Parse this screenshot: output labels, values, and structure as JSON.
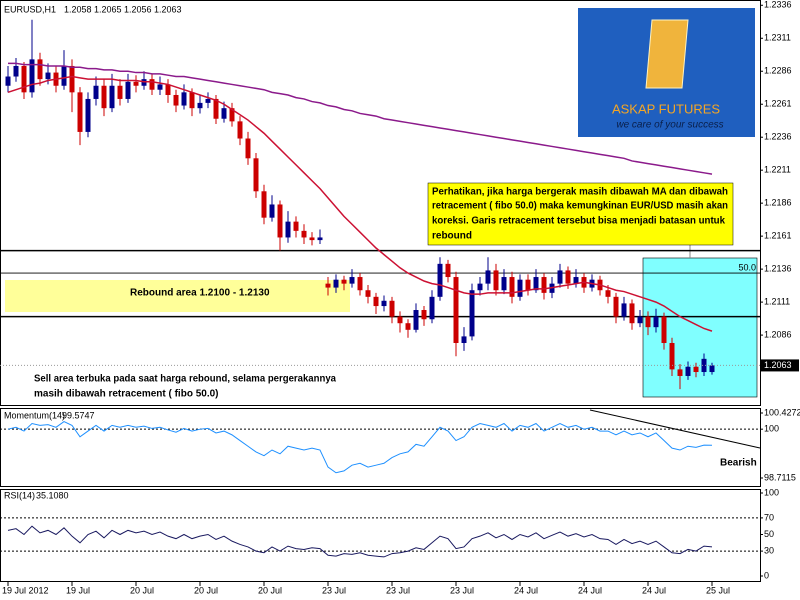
{
  "chart_data": [
    {
      "type": "candlestick",
      "title": "EURUSD,H1",
      "up_color": "#00008b",
      "down_color": "#cc0000",
      "categories": [
        "19 Jul 2012",
        null,
        null,
        null,
        null,
        null,
        null,
        null,
        "19 Jul",
        null,
        null,
        null,
        null,
        null,
        null,
        null,
        "20 Jul",
        null,
        null,
        null,
        null,
        null,
        null,
        null,
        "20 Jul",
        null,
        null,
        null,
        null,
        null,
        null,
        null,
        "20 Jul",
        null,
        null,
        null,
        null,
        null,
        null,
        null,
        "23 Jul",
        null,
        null,
        null,
        null,
        null,
        null,
        null,
        "23 Jul",
        null,
        null,
        null,
        null,
        null,
        null,
        null,
        "23 Jul",
        null,
        null,
        null,
        null,
        null,
        null,
        null,
        "24 Jul",
        null,
        null,
        null,
        null,
        null,
        null,
        null,
        "24 Jul",
        null,
        null,
        null,
        null,
        null,
        null,
        null,
        "24 Jul",
        null,
        null,
        null,
        null,
        null,
        null,
        null,
        "25 Jul"
      ],
      "candles": [
        [
          1.2275,
          1.229,
          1.227,
          1.2282
        ],
        [
          1.2282,
          1.2296,
          1.2278,
          1.229
        ],
        [
          1.229,
          1.2293,
          1.2265,
          1.227
        ],
        [
          1.227,
          1.2325,
          1.2266,
          1.2295
        ],
        [
          1.2295,
          1.23,
          1.2275,
          1.228
        ],
        [
          1.228,
          1.2292,
          1.2276,
          1.2285
        ],
        [
          1.2285,
          1.229,
          1.227,
          1.2275
        ],
        [
          1.2275,
          1.2302,
          1.2272,
          1.229
        ],
        [
          1.229,
          1.2295,
          1.2255,
          1.227
        ],
        [
          1.227,
          1.2274,
          1.223,
          1.224
        ],
        [
          1.224,
          1.227,
          1.2236,
          1.2265
        ],
        [
          1.2265,
          1.2282,
          1.226,
          1.2275
        ],
        [
          1.2275,
          1.228,
          1.2252,
          1.2258
        ],
        [
          1.2258,
          1.2284,
          1.2255,
          1.2275
        ],
        [
          1.2275,
          1.228,
          1.226,
          1.2265
        ],
        [
          1.2265,
          1.2284,
          1.2262,
          1.2278
        ],
        [
          1.2278,
          1.2283,
          1.227,
          1.2275
        ],
        [
          1.2275,
          1.2286,
          1.2272,
          1.228
        ],
        [
          1.228,
          1.2284,
          1.2268,
          1.2272
        ],
        [
          1.2272,
          1.2282,
          1.2268,
          1.2276
        ],
        [
          1.2276,
          1.228,
          1.2262,
          1.2268
        ],
        [
          1.2268,
          1.2272,
          1.2255,
          1.226
        ],
        [
          1.226,
          1.2276,
          1.2257,
          1.227
        ],
        [
          1.227,
          1.2273,
          1.2252,
          1.2258
        ],
        [
          1.2258,
          1.2268,
          1.2254,
          1.2262
        ],
        [
          1.2262,
          1.227,
          1.2258,
          1.2265
        ],
        [
          1.2265,
          1.2268,
          1.2246,
          1.225
        ],
        [
          1.225,
          1.2263,
          1.2247,
          1.2258
        ],
        [
          1.2258,
          1.2262,
          1.2244,
          1.2248
        ],
        [
          1.2248,
          1.2252,
          1.223,
          1.2235
        ],
        [
          1.2235,
          1.224,
          1.2215,
          1.222
        ],
        [
          1.222,
          1.2224,
          1.219,
          1.2195
        ],
        [
          1.2195,
          1.22,
          1.217,
          1.2175
        ],
        [
          1.2175,
          1.2192,
          1.2172,
          1.2185
        ],
        [
          1.2185,
          1.2188,
          1.215,
          1.216
        ],
        [
          1.216,
          1.218,
          1.2156,
          1.2172
        ],
        [
          1.2172,
          1.2176,
          1.216,
          1.2165
        ],
        [
          1.2165,
          1.217,
          1.2155,
          1.216
        ],
        [
          1.216,
          1.2164,
          1.2154,
          1.2158
        ],
        [
          1.2158,
          1.2166,
          1.2155,
          1.216
        ],
        [
          1.2125,
          1.213,
          1.2116,
          1.2122
        ],
        [
          1.2122,
          1.2132,
          1.2118,
          1.2128
        ],
        [
          1.2128,
          1.2131,
          1.212,
          1.2125
        ],
        [
          1.2125,
          1.2136,
          1.2122,
          1.213
        ],
        [
          1.213,
          1.2133,
          1.2116,
          1.212
        ],
        [
          1.212,
          1.2124,
          1.211,
          1.2115
        ],
        [
          1.2115,
          1.2118,
          1.2102,
          1.2108
        ],
        [
          1.2108,
          1.2116,
          1.2104,
          1.2112
        ],
        [
          1.2112,
          1.2115,
          1.2095,
          1.21
        ],
        [
          1.21,
          1.2104,
          1.2088,
          1.2095
        ],
        [
          1.2095,
          1.2098,
          1.2084,
          1.209
        ],
        [
          1.209,
          1.211,
          1.2088,
          1.2105
        ],
        [
          1.2105,
          1.2108,
          1.2093,
          1.2098
        ],
        [
          1.2098,
          1.212,
          1.2095,
          1.2115
        ],
        [
          1.2115,
          1.2145,
          1.2112,
          1.214
        ],
        [
          1.214,
          1.2143,
          1.2126,
          1.213
        ],
        [
          1.213,
          1.2134,
          1.207,
          1.208
        ],
        [
          1.208,
          1.2092,
          1.2074,
          1.2085
        ],
        [
          1.2085,
          1.2125,
          1.2082,
          1.212
        ],
        [
          1.212,
          1.213,
          1.2116,
          1.2125
        ],
        [
          1.2125,
          1.2145,
          1.212,
          1.2135
        ],
        [
          1.2135,
          1.214,
          1.2116,
          1.212
        ],
        [
          1.212,
          1.2136,
          1.2117,
          1.213
        ],
        [
          1.213,
          1.2134,
          1.211,
          1.2115
        ],
        [
          1.2115,
          1.2132,
          1.2112,
          1.2128
        ],
        [
          1.2128,
          1.2132,
          1.2116,
          1.212
        ],
        [
          1.212,
          1.2136,
          1.2118,
          1.213
        ],
        [
          1.213,
          1.2133,
          1.2113,
          1.2118
        ],
        [
          1.2118,
          1.213,
          1.2114,
          1.2125
        ],
        [
          1.2125,
          1.214,
          1.2122,
          1.2135
        ],
        [
          1.2135,
          1.2138,
          1.2121,
          1.2125
        ],
        [
          1.2125,
          1.2136,
          1.2122,
          1.213
        ],
        [
          1.213,
          1.2133,
          1.2118,
          1.2122
        ],
        [
          1.2122,
          1.2132,
          1.2119,
          1.2128
        ],
        [
          1.2128,
          1.2131,
          1.2116,
          1.212
        ],
        [
          1.212,
          1.2124,
          1.211,
          1.2115
        ],
        [
          1.2115,
          1.2118,
          1.2095,
          1.21
        ],
        [
          1.21,
          1.2115,
          1.2097,
          1.211
        ],
        [
          1.211,
          1.2113,
          1.209,
          1.2095
        ],
        [
          1.2095,
          1.2105,
          1.2092,
          1.21
        ],
        [
          1.21,
          1.2104,
          1.2086,
          1.2092
        ],
        [
          1.2092,
          1.2106,
          1.2088,
          1.21
        ],
        [
          1.21,
          1.2103,
          1.2075,
          1.208
        ],
        [
          1.208,
          1.2084,
          1.2055,
          1.206
        ],
        [
          1.206,
          1.2064,
          1.2045,
          1.2055
        ],
        [
          1.2055,
          1.2066,
          1.2052,
          1.2062
        ],
        [
          1.2062,
          1.2065,
          1.2054,
          1.2058
        ],
        [
          1.2058,
          1.2072,
          1.2055,
          1.2068
        ],
        [
          1.2058,
          1.2065,
          1.2056,
          1.2063
        ]
      ],
      "series": [
        {
          "color": "#cc1133",
          "values": [
            1.227,
            1.2272,
            1.2274,
            1.2276,
            1.2277,
            1.2279,
            1.228,
            1.2281,
            1.2282,
            1.2281,
            1.228,
            1.228,
            1.228,
            1.228,
            1.2279,
            1.2279,
            1.2279,
            1.2278,
            1.2278,
            1.2277,
            1.2276,
            1.2274,
            1.2272,
            1.227,
            1.2268,
            1.2266,
            1.2264,
            1.2261,
            1.2257,
            1.2253,
            1.2249,
            1.2244,
            1.2239,
            1.2233,
            1.2227,
            1.2221,
            1.2215,
            1.2209,
            1.2203,
            1.2197,
            1.219,
            1.2183,
            1.2176,
            1.217,
            1.2164,
            1.2158,
            1.2152,
            1.2147,
            1.2142,
            1.2137,
            1.2133,
            1.213,
            1.2127,
            1.2125,
            1.2124,
            1.2122,
            1.212,
            1.2118,
            1.2117,
            1.2117,
            1.2118,
            1.2118,
            1.2118,
            1.2118,
            1.2119,
            1.212,
            1.2121,
            1.2121,
            1.2122,
            1.2123,
            1.2124,
            1.2125,
            1.2126,
            1.2125,
            1.2124,
            1.2122,
            1.212,
            1.2119,
            1.2117,
            1.2115,
            1.2113,
            1.2111,
            1.2108,
            1.2104,
            1.21,
            1.2097,
            1.2094,
            1.2091,
            1.2089
          ]
        },
        {
          "color": "#8b1a8b",
          "values": [
            1.2292,
            1.2292,
            1.2291,
            1.2291,
            1.2291,
            1.229,
            1.229,
            1.229,
            1.2289,
            1.2289,
            1.2288,
            1.2288,
            1.2287,
            1.2287,
            1.2286,
            1.2286,
            1.2285,
            1.2285,
            1.2284,
            1.2284,
            1.2283,
            1.2282,
            1.2282,
            1.2281,
            1.228,
            1.2279,
            1.2278,
            1.2277,
            1.2276,
            1.2275,
            1.2274,
            1.2273,
            1.2272,
            1.227,
            1.2269,
            1.2268,
            1.2266,
            1.2265,
            1.2263,
            1.2262,
            1.226,
            1.2259,
            1.2257,
            1.2256,
            1.2254,
            1.2253,
            1.2252,
            1.225,
            1.2249,
            1.2248,
            1.2247,
            1.2246,
            1.2245,
            1.2244,
            1.2243,
            1.2242,
            1.2241,
            1.224,
            1.2239,
            1.2238,
            1.2237,
            1.2236,
            1.2235,
            1.2234,
            1.2233,
            1.2232,
            1.2231,
            1.223,
            1.2229,
            1.2228,
            1.2227,
            1.2226,
            1.2225,
            1.2224,
            1.2223,
            1.2222,
            1.2221,
            1.222,
            1.2218,
            1.2217,
            1.2216,
            1.2215,
            1.2214,
            1.2213,
            1.2212,
            1.2211,
            1.221,
            1.2209,
            1.2208
          ]
        }
      ],
      "ylim": [
        1.2033,
        1.234
      ],
      "yticks": [
        1.2336,
        1.2311,
        1.2286,
        1.2261,
        1.2236,
        1.2211,
        1.2186,
        1.2161,
        1.2136,
        1.2111,
        1.2086
      ],
      "levels": [
        1.215,
        1.21
      ],
      "fibo": {
        "level": 1.2133,
        "label": "50.0"
      },
      "note": [
        "Perhatikan, jika harga bergerak masih dibawah MA dan dibawah",
        "retracement ( fibo 50.0) maka kemungkinan EUR/USD masih akan",
        "koreksi. Garis retracement tersebut bisa menjadi batasan untuk",
        "rebound"
      ],
      "rebound_label": "Rebound area 1.2100 - 1.2130",
      "sell_note": [
        "Sell area terbuka pada saat harga rebound, selama pergerakannya",
        "masih dibawah retracement ( fibo 50.0)"
      ]
    },
    {
      "type": "line",
      "title": "Momentum(14)",
      "color": "#1e90ff",
      "values": [
        100.0,
        100.05,
        99.95,
        100.15,
        100.1,
        100.12,
        100.05,
        100.2,
        100.1,
        99.8,
        99.95,
        100.1,
        99.95,
        100.1,
        100.05,
        100.1,
        100.05,
        100.08,
        100.02,
        100.05,
        99.98,
        99.92,
        100.02,
        99.95,
        100.0,
        100.02,
        99.9,
        99.95,
        99.85,
        99.7,
        99.55,
        99.4,
        99.3,
        99.45,
        99.35,
        99.55,
        99.5,
        99.45,
        99.5,
        99.45,
        99.0,
        98.85,
        98.9,
        99.05,
        99.1,
        99.0,
        99.05,
        99.1,
        99.25,
        99.35,
        99.4,
        99.6,
        99.55,
        99.8,
        100.05,
        99.95,
        99.7,
        99.8,
        100.05,
        100.15,
        100.1,
        100.05,
        100.15,
        99.95,
        100.1,
        100.05,
        100.15,
        99.95,
        100.05,
        100.15,
        100.05,
        100.1,
        100.0,
        100.05,
        99.95,
        99.95,
        99.85,
        99.95,
        99.85,
        99.9,
        99.8,
        99.9,
        99.7,
        99.5,
        99.45,
        99.55,
        99.52,
        99.58,
        99.5747
      ],
      "ylim": [
        98.7115,
        100.4272
      ],
      "yticks": [
        100.4272,
        100,
        98.7115
      ],
      "levels": [
        100
      ],
      "annotation": "Bearish"
    },
    {
      "type": "line",
      "title": "RSI(14)",
      "last_label": "35.1080",
      "color": "#1a1a60",
      "values": [
        55,
        57,
        50,
        60,
        52,
        55,
        50,
        58,
        48,
        40,
        50,
        54,
        46,
        55,
        50,
        55,
        52,
        54,
        50,
        53,
        48,
        45,
        50,
        45,
        48,
        50,
        44,
        48,
        42,
        38,
        35,
        30,
        28,
        35,
        30,
        36,
        33,
        32,
        34,
        33,
        25,
        24,
        27,
        26,
        28,
        25,
        24,
        23,
        27,
        28,
        30,
        34,
        32,
        40,
        48,
        45,
        33,
        35,
        45,
        48,
        52,
        46,
        50,
        44,
        50,
        47,
        52,
        45,
        49,
        53,
        48,
        51,
        47,
        50,
        45,
        44,
        38,
        44,
        39,
        42,
        38,
        42,
        35,
        28,
        27,
        32,
        30,
        36,
        35.108
      ],
      "ylim": [
        0,
        100
      ],
      "yticks": [
        100,
        70,
        50,
        30,
        0
      ],
      "levels": [
        70,
        30
      ]
    }
  ],
  "logo": {
    "name": "ASKAP FUTURES",
    "slogan": "we care of your success"
  }
}
